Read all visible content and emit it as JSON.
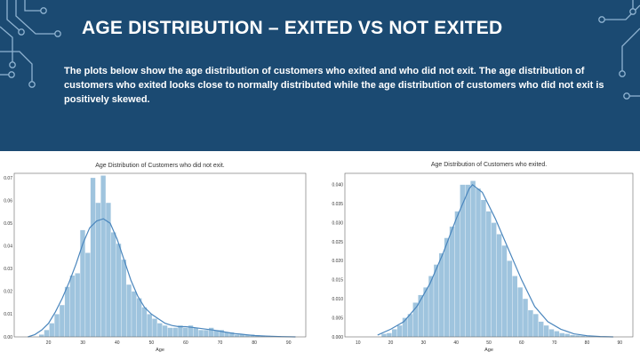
{
  "slide": {
    "title": "AGE DISTRIBUTION – EXITED VS NOT EXITED",
    "description": "The plots below show the age distribution of customers who exited and who did not exit. The age distribution of customers who exited looks close to normally distributed while the age distribution of customers who did not exit is positively skewed."
  },
  "colors": {
    "header_band": "#1b4a72",
    "circuit_lines": "#8fb3d1",
    "bar_fill": "#9fc4de",
    "kde_line": "#4a86bd"
  },
  "chart_data": [
    {
      "type": "bar",
      "title": "Age Distribution of Customers who did not exit.",
      "xlabel": "Age",
      "ylabel": "",
      "xlim": [
        10,
        95
      ],
      "ylim": [
        0,
        0.072
      ],
      "xticks": [
        20,
        30,
        40,
        50,
        60,
        70,
        80,
        90
      ],
      "yticks": [
        "0.00",
        "0.01",
        "0.02",
        "0.03",
        "0.04",
        "0.05",
        "0.06",
        "0.07"
      ],
      "bin_width": 1.5,
      "bins": [
        {
          "x": 18.0,
          "y": 0.001
        },
        {
          "x": 19.5,
          "y": 0.003
        },
        {
          "x": 21.0,
          "y": 0.006
        },
        {
          "x": 22.5,
          "y": 0.01
        },
        {
          "x": 24.0,
          "y": 0.014
        },
        {
          "x": 25.5,
          "y": 0.022
        },
        {
          "x": 27.0,
          "y": 0.027
        },
        {
          "x": 28.5,
          "y": 0.028
        },
        {
          "x": 30.0,
          "y": 0.047
        },
        {
          "x": 31.5,
          "y": 0.037
        },
        {
          "x": 33.0,
          "y": 0.07
        },
        {
          "x": 34.5,
          "y": 0.059
        },
        {
          "x": 36.0,
          "y": 0.071
        },
        {
          "x": 37.5,
          "y": 0.059
        },
        {
          "x": 39.0,
          "y": 0.046
        },
        {
          "x": 40.5,
          "y": 0.041
        },
        {
          "x": 42.0,
          "y": 0.034
        },
        {
          "x": 43.5,
          "y": 0.023
        },
        {
          "x": 45.0,
          "y": 0.02
        },
        {
          "x": 46.5,
          "y": 0.017
        },
        {
          "x": 48.0,
          "y": 0.013
        },
        {
          "x": 49.5,
          "y": 0.01
        },
        {
          "x": 51.0,
          "y": 0.008
        },
        {
          "x": 52.5,
          "y": 0.006
        },
        {
          "x": 54.0,
          "y": 0.005
        },
        {
          "x": 55.5,
          "y": 0.004
        },
        {
          "x": 57.0,
          "y": 0.004
        },
        {
          "x": 58.5,
          "y": 0.005
        },
        {
          "x": 60.0,
          "y": 0.004
        },
        {
          "x": 61.5,
          "y": 0.005
        },
        {
          "x": 63.0,
          "y": 0.004
        },
        {
          "x": 64.5,
          "y": 0.003
        },
        {
          "x": 66.0,
          "y": 0.003
        },
        {
          "x": 67.5,
          "y": 0.004
        },
        {
          "x": 69.0,
          "y": 0.003
        },
        {
          "x": 70.5,
          "y": 0.003
        },
        {
          "x": 72.0,
          "y": 0.002
        },
        {
          "x": 73.5,
          "y": 0.002
        },
        {
          "x": 75.0,
          "y": 0.001
        },
        {
          "x": 76.5,
          "y": 0.001
        },
        {
          "x": 78.0,
          "y": 0.001
        },
        {
          "x": 79.5,
          "y": 0.001
        },
        {
          "x": 81.0,
          "y": 0.0008
        },
        {
          "x": 82.5,
          "y": 0.0006
        },
        {
          "x": 84.0,
          "y": 0.0005
        },
        {
          "x": 85.5,
          "y": 0.0004
        },
        {
          "x": 87.0,
          "y": 0.0003
        },
        {
          "x": 88.5,
          "y": 0.0002
        },
        {
          "x": 90.0,
          "y": 0.0002
        },
        {
          "x": 91.5,
          "y": 0.0001
        }
      ],
      "kde": {
        "x": [
          14,
          16,
          18,
          20,
          22,
          24,
          26,
          28,
          30,
          32,
          34,
          36,
          38,
          40,
          42,
          44,
          46,
          48,
          50,
          52,
          54,
          56,
          58,
          60,
          62,
          64,
          66,
          68,
          70,
          72,
          74,
          76,
          78,
          80,
          84,
          88,
          92
        ],
        "y": [
          0.0,
          0.001,
          0.003,
          0.006,
          0.011,
          0.017,
          0.024,
          0.032,
          0.041,
          0.048,
          0.051,
          0.052,
          0.05,
          0.043,
          0.034,
          0.025,
          0.018,
          0.013,
          0.01,
          0.008,
          0.006,
          0.005,
          0.0045,
          0.0045,
          0.0042,
          0.0038,
          0.0034,
          0.003,
          0.0025,
          0.002,
          0.0015,
          0.0012,
          0.0009,
          0.0006,
          0.0003,
          0.0001,
          0.0
        ]
      }
    },
    {
      "type": "bar",
      "title": "Age Distribution of Customers who exited.",
      "xlabel": "Age",
      "ylabel": "",
      "xlim": [
        6,
        94
      ],
      "ylim": [
        0,
        0.043
      ],
      "xticks": [
        10,
        20,
        30,
        40,
        50,
        60,
        70,
        80,
        90
      ],
      "yticks": [
        "0.000",
        "0.005",
        "0.010",
        "0.015",
        "0.020",
        "0.025",
        "0.030",
        "0.035",
        "0.040"
      ],
      "bin_width": 1.6,
      "bins": [
        {
          "x": 18.0,
          "y": 0.0008
        },
        {
          "x": 19.6,
          "y": 0.001
        },
        {
          "x": 21.2,
          "y": 0.002
        },
        {
          "x": 22.8,
          "y": 0.003
        },
        {
          "x": 24.4,
          "y": 0.005
        },
        {
          "x": 26.0,
          "y": 0.006
        },
        {
          "x": 27.6,
          "y": 0.009
        },
        {
          "x": 29.2,
          "y": 0.011
        },
        {
          "x": 30.8,
          "y": 0.013
        },
        {
          "x": 32.4,
          "y": 0.016
        },
        {
          "x": 34.0,
          "y": 0.019
        },
        {
          "x": 35.6,
          "y": 0.022
        },
        {
          "x": 37.2,
          "y": 0.026
        },
        {
          "x": 38.8,
          "y": 0.029
        },
        {
          "x": 40.4,
          "y": 0.033
        },
        {
          "x": 42.0,
          "y": 0.04
        },
        {
          "x": 43.6,
          "y": 0.04
        },
        {
          "x": 45.2,
          "y": 0.041
        },
        {
          "x": 46.8,
          "y": 0.039
        },
        {
          "x": 48.4,
          "y": 0.036
        },
        {
          "x": 50.0,
          "y": 0.033
        },
        {
          "x": 51.6,
          "y": 0.03
        },
        {
          "x": 53.2,
          "y": 0.027
        },
        {
          "x": 54.8,
          "y": 0.024
        },
        {
          "x": 56.4,
          "y": 0.02
        },
        {
          "x": 58.0,
          "y": 0.016
        },
        {
          "x": 59.6,
          "y": 0.013
        },
        {
          "x": 61.2,
          "y": 0.01
        },
        {
          "x": 62.8,
          "y": 0.007
        },
        {
          "x": 64.4,
          "y": 0.006
        },
        {
          "x": 66.0,
          "y": 0.004
        },
        {
          "x": 67.6,
          "y": 0.003
        },
        {
          "x": 69.2,
          "y": 0.002
        },
        {
          "x": 70.8,
          "y": 0.0015
        },
        {
          "x": 72.4,
          "y": 0.001
        },
        {
          "x": 74.0,
          "y": 0.0008
        },
        {
          "x": 75.6,
          "y": 0.0005
        },
        {
          "x": 77.2,
          "y": 0.0004
        },
        {
          "x": 78.8,
          "y": 0.0003
        },
        {
          "x": 80.4,
          "y": 0.0002
        },
        {
          "x": 82.0,
          "y": 0.0001
        }
      ],
      "kde": {
        "x": [
          16,
          20,
          24,
          28,
          32,
          36,
          40,
          44,
          45,
          48,
          52,
          56,
          60,
          64,
          68,
          72,
          76,
          80,
          84,
          88
        ],
        "y": [
          0.0005,
          0.002,
          0.004,
          0.008,
          0.014,
          0.022,
          0.031,
          0.039,
          0.04,
          0.038,
          0.031,
          0.023,
          0.015,
          0.008,
          0.004,
          0.002,
          0.0008,
          0.0003,
          0.0001,
          0.0
        ]
      }
    }
  ]
}
